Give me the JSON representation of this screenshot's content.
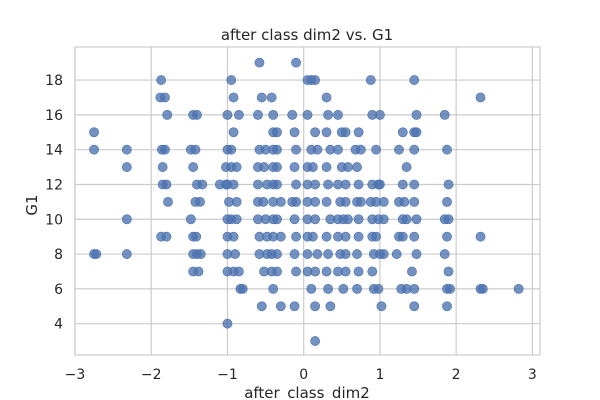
{
  "chart_data": {
    "type": "scatter",
    "title": "after class dim2 vs. G1",
    "xlabel": "after_class_dim2",
    "ylabel": "G1",
    "xlim": [
      -3,
      3.1
    ],
    "ylim": [
      2.2,
      19.9
    ],
    "xticks": [
      -3,
      -2,
      -1,
      0,
      1,
      2,
      3
    ],
    "yticks": [
      4,
      6,
      8,
      10,
      12,
      14,
      16,
      18
    ],
    "grid": true,
    "marker_color": "#4c72b0",
    "grid_color": "#cccccc",
    "points": [
      [
        -2.75,
        15
      ],
      [
        -2.75,
        14
      ],
      [
        -2.75,
        8
      ],
      [
        -2.72,
        8
      ],
      [
        -2.32,
        14
      ],
      [
        -2.32,
        13
      ],
      [
        -2.32,
        10
      ],
      [
        -2.32,
        8
      ],
      [
        -1.87,
        18
      ],
      [
        -1.88,
        17
      ],
      [
        -1.82,
        17
      ],
      [
        -1.86,
        14
      ],
      [
        -1.82,
        14
      ],
      [
        -1.85,
        13
      ],
      [
        -1.85,
        12
      ],
      [
        -1.79,
        16
      ],
      [
        -1.8,
        12
      ],
      [
        -1.78,
        11
      ],
      [
        -1.87,
        9
      ],
      [
        -1.8,
        9
      ],
      [
        -1.45,
        16
      ],
      [
        -1.4,
        16
      ],
      [
        -1.48,
        14
      ],
      [
        -1.42,
        14
      ],
      [
        -1.45,
        13
      ],
      [
        -1.4,
        12
      ],
      [
        -1.33,
        12
      ],
      [
        -1.42,
        11
      ],
      [
        -1.36,
        11
      ],
      [
        -1.48,
        10
      ],
      [
        -1.45,
        9
      ],
      [
        -1.41,
        9
      ],
      [
        -1.45,
        8
      ],
      [
        -1.4,
        8
      ],
      [
        -1.35,
        8
      ],
      [
        -1.45,
        7
      ],
      [
        -1.38,
        7
      ],
      [
        -1.1,
        12
      ],
      [
        -1.02,
        12
      ],
      [
        -0.95,
        18
      ],
      [
        -0.92,
        17
      ],
      [
        -1.0,
        16
      ],
      [
        -0.85,
        16
      ],
      [
        -0.92,
        15
      ],
      [
        -1.0,
        14
      ],
      [
        -0.95,
        14
      ],
      [
        -1.02,
        13
      ],
      [
        -0.95,
        13
      ],
      [
        -0.88,
        13
      ],
      [
        -1.0,
        12
      ],
      [
        -0.92,
        12
      ],
      [
        -0.98,
        11
      ],
      [
        -0.88,
        11
      ],
      [
        -1.0,
        10
      ],
      [
        -0.95,
        10
      ],
      [
        -0.88,
        10
      ],
      [
        -1.0,
        9
      ],
      [
        -0.92,
        9
      ],
      [
        -1.0,
        8
      ],
      [
        -0.9,
        8
      ],
      [
        -1.0,
        7
      ],
      [
        -0.92,
        7
      ],
      [
        -0.85,
        7
      ],
      [
        -0.83,
        6
      ],
      [
        -0.8,
        6
      ],
      [
        -1.0,
        4
      ],
      [
        -0.58,
        19
      ],
      [
        -0.55,
        17
      ],
      [
        -0.6,
        16
      ],
      [
        -0.58,
        14
      ],
      [
        -0.5,
        14
      ],
      [
        -0.6,
        13
      ],
      [
        -0.52,
        13
      ],
      [
        -0.6,
        12
      ],
      [
        -0.48,
        12
      ],
      [
        -0.6,
        11
      ],
      [
        -0.53,
        11
      ],
      [
        -0.6,
        10
      ],
      [
        -0.5,
        10
      ],
      [
        -0.58,
        9
      ],
      [
        -0.48,
        9
      ],
      [
        -0.58,
        8
      ],
      [
        -0.48,
        8
      ],
      [
        -0.52,
        7
      ],
      [
        -0.55,
        5
      ],
      [
        -0.42,
        17
      ],
      [
        -0.4,
        16
      ],
      [
        -0.4,
        15
      ],
      [
        -0.35,
        15
      ],
      [
        -0.4,
        14
      ],
      [
        -0.35,
        14
      ],
      [
        -0.4,
        13
      ],
      [
        -0.35,
        13
      ],
      [
        -0.4,
        12
      ],
      [
        -0.35,
        12
      ],
      [
        -0.4,
        11
      ],
      [
        -0.3,
        11
      ],
      [
        -0.4,
        10
      ],
      [
        -0.35,
        10
      ],
      [
        -0.4,
        9
      ],
      [
        -0.3,
        9
      ],
      [
        -0.42,
        8
      ],
      [
        -0.35,
        8
      ],
      [
        -0.42,
        7
      ],
      [
        -0.35,
        7
      ],
      [
        -0.4,
        6
      ],
      [
        -0.3,
        5
      ],
      [
        -0.1,
        19
      ],
      [
        -0.12,
        15
      ],
      [
        -0.15,
        16
      ],
      [
        -0.1,
        14
      ],
      [
        -0.12,
        13
      ],
      [
        -0.1,
        12
      ],
      [
        -0.15,
        11
      ],
      [
        -0.1,
        11
      ],
      [
        -0.12,
        10
      ],
      [
        -0.1,
        9
      ],
      [
        -0.12,
        8
      ],
      [
        -0.1,
        7
      ],
      [
        -0.12,
        5
      ],
      [
        0.05,
        18
      ],
      [
        0.1,
        18
      ],
      [
        0.15,
        18
      ],
      [
        0.05,
        16
      ],
      [
        0.15,
        15
      ],
      [
        0.1,
        14
      ],
      [
        0.18,
        14
      ],
      [
        0.05,
        13
      ],
      [
        0.12,
        13
      ],
      [
        0.05,
        12
      ],
      [
        0.15,
        12
      ],
      [
        0.05,
        11
      ],
      [
        0.15,
        11
      ],
      [
        0.05,
        10
      ],
      [
        0.15,
        10
      ],
      [
        0.05,
        9
      ],
      [
        0.12,
        9
      ],
      [
        0.05,
        8
      ],
      [
        0.18,
        8
      ],
      [
        0.05,
        7
      ],
      [
        0.15,
        7
      ],
      [
        0.1,
        6
      ],
      [
        0.15,
        5
      ],
      [
        0.15,
        3
      ],
      [
        0.3,
        17
      ],
      [
        0.32,
        16
      ],
      [
        0.3,
        15
      ],
      [
        0.35,
        14
      ],
      [
        0.3,
        13
      ],
      [
        0.32,
        12
      ],
      [
        0.3,
        11
      ],
      [
        0.35,
        10
      ],
      [
        0.3,
        9
      ],
      [
        0.32,
        8
      ],
      [
        0.3,
        7
      ],
      [
        0.32,
        6
      ],
      [
        0.35,
        5
      ],
      [
        0.45,
        16
      ],
      [
        0.5,
        15
      ],
      [
        0.55,
        15
      ],
      [
        0.45,
        14
      ],
      [
        0.5,
        13
      ],
      [
        0.58,
        13
      ],
      [
        0.45,
        12
      ],
      [
        0.55,
        12
      ],
      [
        0.48,
        11
      ],
      [
        0.55,
        11
      ],
      [
        0.45,
        10
      ],
      [
        0.52,
        10
      ],
      [
        0.58,
        10
      ],
      [
        0.45,
        9
      ],
      [
        0.55,
        9
      ],
      [
        0.48,
        8
      ],
      [
        0.55,
        8
      ],
      [
        0.45,
        7
      ],
      [
        0.55,
        7
      ],
      [
        0.52,
        6
      ],
      [
        0.72,
        15
      ],
      [
        0.68,
        14
      ],
      [
        0.75,
        14
      ],
      [
        0.7,
        13
      ],
      [
        0.72,
        12
      ],
      [
        0.7,
        11
      ],
      [
        0.75,
        11
      ],
      [
        0.72,
        10
      ],
      [
        0.72,
        9
      ],
      [
        0.7,
        8
      ],
      [
        0.72,
        7
      ],
      [
        0.7,
        6
      ],
      [
        0.88,
        18
      ],
      [
        0.9,
        16
      ],
      [
        0.95,
        14
      ],
      [
        0.9,
        12
      ],
      [
        0.98,
        12
      ],
      [
        0.88,
        11
      ],
      [
        0.95,
        11
      ],
      [
        0.9,
        10
      ],
      [
        0.98,
        10
      ],
      [
        0.9,
        9
      ],
      [
        0.95,
        9
      ],
      [
        0.92,
        8
      ],
      [
        1.0,
        8
      ],
      [
        0.9,
        7
      ],
      [
        0.92,
        6
      ],
      [
        0.98,
        6
      ],
      [
        1.0,
        16
      ],
      [
        1.0,
        12
      ],
      [
        1.05,
        11
      ],
      [
        1.05,
        10
      ],
      [
        1.05,
        8
      ],
      [
        1.02,
        5
      ],
      [
        1.25,
        14
      ],
      [
        1.3,
        15
      ],
      [
        1.35,
        13
      ],
      [
        1.3,
        12
      ],
      [
        1.25,
        11
      ],
      [
        1.32,
        11
      ],
      [
        1.3,
        10
      ],
      [
        1.35,
        10
      ],
      [
        1.25,
        9
      ],
      [
        1.3,
        9
      ],
      [
        1.22,
        8
      ],
      [
        1.28,
        6
      ],
      [
        1.35,
        6
      ],
      [
        1.45,
        6
      ],
      [
        1.45,
        5
      ],
      [
        1.45,
        18
      ],
      [
        1.48,
        16
      ],
      [
        1.45,
        15
      ],
      [
        1.48,
        15
      ],
      [
        1.45,
        14
      ],
      [
        1.45,
        12
      ],
      [
        1.45,
        11
      ],
      [
        1.48,
        10
      ],
      [
        1.45,
        9
      ],
      [
        1.48,
        8
      ],
      [
        1.42,
        7
      ],
      [
        1.85,
        16
      ],
      [
        1.88,
        14
      ],
      [
        1.9,
        12
      ],
      [
        1.88,
        11
      ],
      [
        1.85,
        10
      ],
      [
        1.9,
        10
      ],
      [
        1.88,
        9
      ],
      [
        1.85,
        8
      ],
      [
        1.9,
        7
      ],
      [
        1.88,
        6
      ],
      [
        1.92,
        6
      ],
      [
        1.88,
        5
      ],
      [
        2.32,
        17
      ],
      [
        2.32,
        9
      ],
      [
        2.32,
        6
      ],
      [
        2.35,
        6
      ],
      [
        2.82,
        6
      ]
    ]
  }
}
